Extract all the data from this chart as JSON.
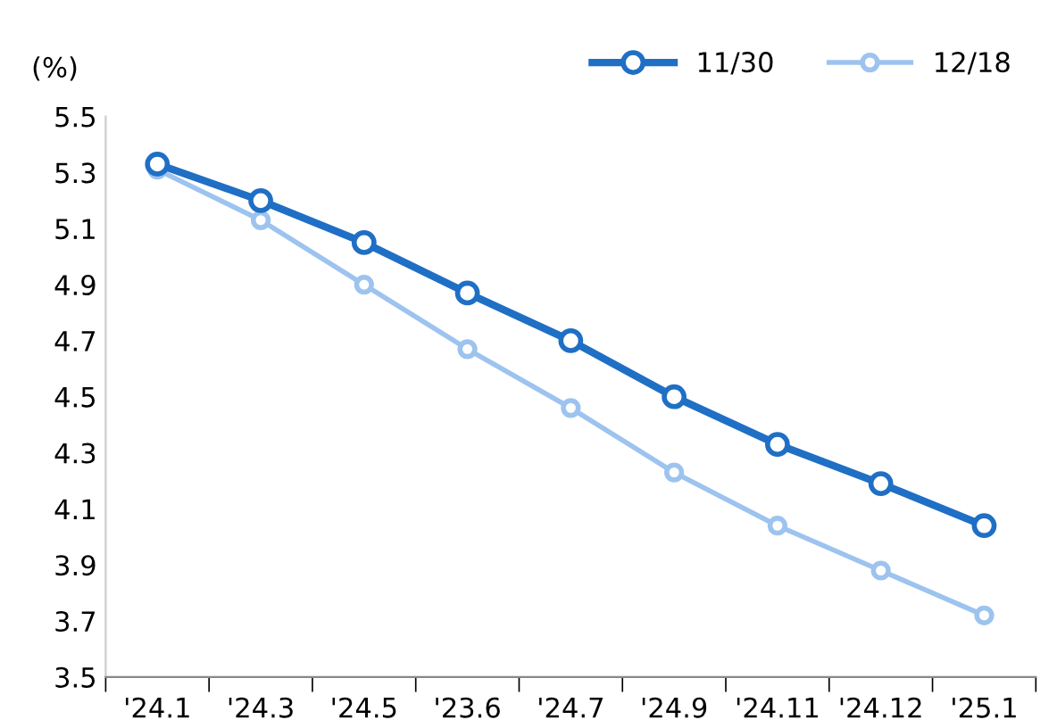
{
  "chart_data": {
    "type": "line",
    "ylabel": "(%)",
    "categories": [
      "'24.1",
      "'24.3",
      "'24.5",
      "'23.6",
      "'24.7",
      "'24.9",
      "'24.11",
      "'24.12",
      "'25.1"
    ],
    "series": [
      {
        "name": "11/30",
        "color": "#1f6fc5",
        "values": [
          5.33,
          5.2,
          5.05,
          4.87,
          4.7,
          4.5,
          4.33,
          4.19,
          4.04
        ]
      },
      {
        "name": "12/18",
        "color": "#9dc3ef",
        "values": [
          5.31,
          5.13,
          4.9,
          4.67,
          4.46,
          4.23,
          4.04,
          3.88,
          3.72
        ]
      }
    ],
    "ylim": [
      3.5,
      5.5
    ],
    "yticks": [
      3.5,
      3.7,
      3.9,
      4.1,
      4.3,
      4.5,
      4.7,
      4.9,
      5.1,
      5.3,
      5.5
    ],
    "grid": false,
    "legend": "top right",
    "marker": "circle",
    "line_style": "solid"
  }
}
